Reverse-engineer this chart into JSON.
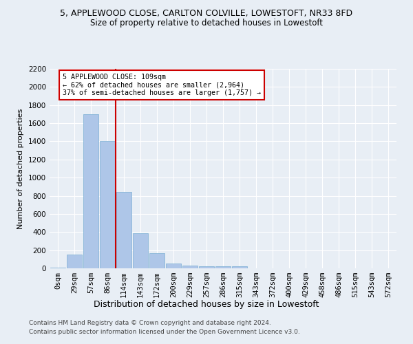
{
  "title": "5, APPLEWOOD CLOSE, CARLTON COLVILLE, LOWESTOFT, NR33 8FD",
  "subtitle": "Size of property relative to detached houses in Lowestoft",
  "xlabel": "Distribution of detached houses by size in Lowestoft",
  "ylabel": "Number of detached properties",
  "bin_labels": [
    "0sqm",
    "29sqm",
    "57sqm",
    "86sqm",
    "114sqm",
    "143sqm",
    "172sqm",
    "200sqm",
    "229sqm",
    "257sqm",
    "286sqm",
    "315sqm",
    "343sqm",
    "372sqm",
    "400sqm",
    "429sqm",
    "458sqm",
    "486sqm",
    "515sqm",
    "543sqm",
    "572sqm"
  ],
  "bar_heights": [
    10,
    155,
    1700,
    1400,
    840,
    390,
    165,
    55,
    30,
    20,
    20,
    20,
    0,
    0,
    0,
    0,
    0,
    0,
    0,
    0,
    0
  ],
  "bar_color": "#aec6e8",
  "bar_edge_color": "#7aafd4",
  "bg_color": "#e8eef5",
  "grid_color": "#ffffff",
  "annotation_line1": "5 APPLEWOOD CLOSE: 109sqm",
  "annotation_line2": "← 62% of detached houses are smaller (2,964)",
  "annotation_line3": "37% of semi-detached houses are larger (1,757) →",
  "annotation_box_color": "#ffffff",
  "annotation_box_edge": "#cc0000",
  "vline_color": "#cc0000",
  "vline_x": 3.5,
  "ylim": [
    0,
    2200
  ],
  "yticks": [
    0,
    200,
    400,
    600,
    800,
    1000,
    1200,
    1400,
    1600,
    1800,
    2000,
    2200
  ],
  "footer1": "Contains HM Land Registry data © Crown copyright and database right 2024.",
  "footer2": "Contains public sector information licensed under the Open Government Licence v3.0.",
  "title_fontsize": 9,
  "subtitle_fontsize": 8.5,
  "ylabel_fontsize": 8,
  "xlabel_fontsize": 9,
  "tick_fontsize": 7.5,
  "footer_fontsize": 6.5
}
